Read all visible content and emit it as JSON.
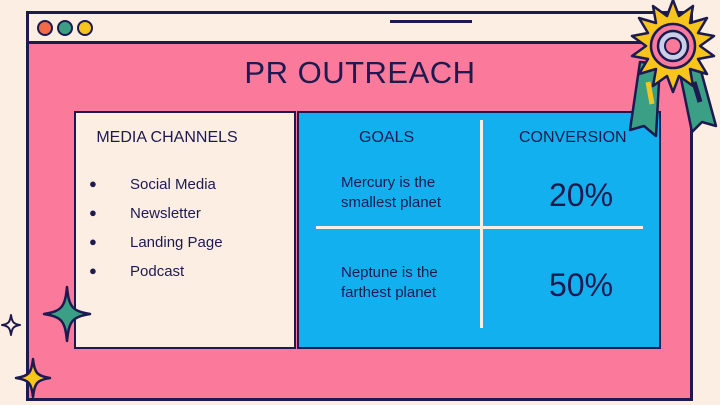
{
  "title": "PR OUTREACH",
  "media_channels": {
    "heading": "MEDIA CHANNELS",
    "items": [
      "Social Media",
      "Newsletter",
      "Landing Page",
      "Podcast"
    ]
  },
  "table": {
    "goals_heading": "GOALS",
    "conversion_heading": "CONVERSION",
    "rows": [
      {
        "goal": "Mercury is the smallest planet",
        "conversion": "20%"
      },
      {
        "goal": "Neptune is the farthest planet",
        "conversion": "50%"
      }
    ]
  },
  "colors": {
    "background": "#fdeee3",
    "window": "#fb7a9c",
    "table_panel": "#13b0f0",
    "ink": "#1d1a4f",
    "green": "#3a9f85",
    "yellow": "#f7c51c",
    "red": "#f36a47"
  },
  "icons": [
    "window-dot-red",
    "window-dot-green",
    "window-dot-yellow",
    "award-medal-icon",
    "sparkle-icon"
  ]
}
